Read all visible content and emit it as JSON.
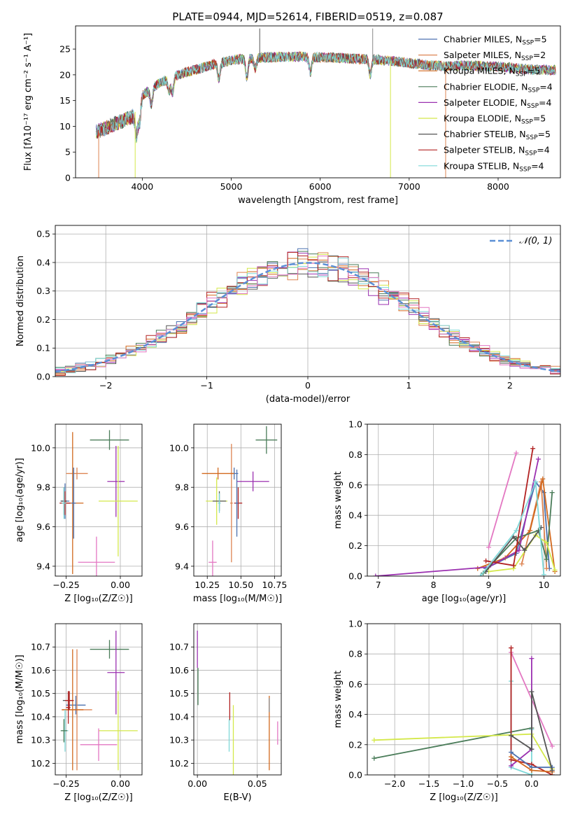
{
  "title": "PLATE=0944, MJD=52614, FIBERID=0519, z=0.087",
  "colors": {
    "Chabrier MILES": "#4c72b0",
    "Salpeter MILES": "#dd8452",
    "Kroupa MILES": "#d2691e",
    "Chabrier ELODIE": "#4a7c59",
    "Salpeter ELODIE": "#9b30b0",
    "Kroupa ELODIE": "#d4e84a",
    "Chabrier STELIB": "#555555",
    "Salpeter STELIB": "#b22222",
    "Kroupa STELIB": "#7fd8d8",
    "normal": "#5b8fd6",
    "pink": "#e377c2"
  },
  "chart_data": [
    {
      "id": "spectrum",
      "type": "line",
      "xlabel": "wavelength [Angstrom, rest frame]",
      "ylabel": "Flux [fλ10⁻¹⁷ erg cm⁻² s⁻¹ A⁻¹]",
      "xlim": [
        3250,
        8700
      ],
      "ylim": [
        0,
        29.5
      ],
      "xticks": [
        4000,
        5000,
        6000,
        7000,
        8000
      ],
      "yticks": [
        0,
        5,
        10,
        15,
        20,
        25
      ],
      "grid": false,
      "legend_position": "top-right",
      "legend": [
        {
          "label": "Chabrier MILES, N",
          "sub": "SSP",
          "tail": "=5",
          "color": "#4c72b0"
        },
        {
          "label": "Salpeter MILES, N",
          "sub": "SSP",
          "tail": "=2",
          "color": "#dd8452"
        },
        {
          "label": "Kroupa MILES, N",
          "sub": "SSP",
          "tail": "=5",
          "color": "#d2691e"
        },
        {
          "label": "Chabrier ELODIE, N",
          "sub": "SSP",
          "tail": "=4",
          "color": "#4a7c59"
        },
        {
          "label": "Salpeter ELODIE, N",
          "sub": "SSP",
          "tail": "=4",
          "color": "#9b30b0"
        },
        {
          "label": "Kroupa ELODIE, N",
          "sub": "SSP",
          "tail": "=5",
          "color": "#d4e84a"
        },
        {
          "label": "Chabrier STELIB, N",
          "sub": "SSP",
          "tail": "=5",
          "color": "#555555"
        },
        {
          "label": "Salpeter STELIB, N",
          "sub": "SSP",
          "tail": "=4",
          "color": "#b22222"
        },
        {
          "label": "Kroupa STELIB, N",
          "sub": "SSP",
          "tail": "=4",
          "color": "#7fd8d8"
        }
      ],
      "continuum": {
        "x": [
          3500,
          3700,
          3900,
          4000,
          4200,
          4400,
          4600,
          4800,
          5000,
          5200,
          5400,
          5600,
          5800,
          6000,
          6200,
          6400,
          6600,
          6800,
          7000,
          7200,
          7400,
          7600,
          7800,
          8000,
          8200,
          8400,
          8650
        ],
        "y": [
          9.0,
          10.5,
          12.0,
          16.0,
          18.5,
          20.0,
          21.0,
          22.0,
          22.8,
          23.2,
          23.4,
          23.5,
          23.5,
          23.4,
          23.3,
          23.1,
          23.0,
          22.7,
          22.3,
          21.9,
          21.7,
          21.8,
          21.7,
          21.6,
          21.3,
          21.0,
          20.9
        ]
      },
      "features": [
        {
          "x": 3934,
          "depth": 5.0
        },
        {
          "x": 3969,
          "depth": 4.0
        },
        {
          "x": 4102,
          "depth": 3.0
        },
        {
          "x": 4300,
          "depth": 2.5
        },
        {
          "x": 4340,
          "depth": 3.0
        },
        {
          "x": 4861,
          "depth": 3.0
        },
        {
          "x": 5175,
          "depth": 3.5
        },
        {
          "x": 5270,
          "depth": 2.0
        },
        {
          "x": 5890,
          "depth": 3.0
        },
        {
          "x": 6563,
          "depth": 3.0
        }
      ],
      "spikes": [
        {
          "x": 3510,
          "y": 0,
          "color": "#dd8452"
        },
        {
          "x": 3920,
          "y": 0,
          "color": "#d4e84a"
        },
        {
          "x": 6790,
          "y": 0,
          "color": "#d4e84a"
        },
        {
          "x": 7410,
          "y": 0,
          "color": "#dd8452"
        },
        {
          "x": 6590,
          "y": 29.0,
          "color": "#888888"
        },
        {
          "x": 5320,
          "y": 29.0,
          "color": "#555555"
        }
      ]
    },
    {
      "id": "residuals",
      "type": "step",
      "xlabel": "(data-model)/error",
      "ylabel": "Normed distribution",
      "xlim": [
        -2.5,
        2.5
      ],
      "ylim": [
        0,
        0.53
      ],
      "xticks": [
        -2,
        -1,
        0,
        1,
        2
      ],
      "xticklabels": [
        "−2",
        "−1",
        "0",
        "1",
        "2"
      ],
      "yticks": [
        0,
        0.1,
        0.2,
        0.3,
        0.4,
        0.5
      ],
      "yticklabels": [
        "0.0",
        "0.1",
        "0.2",
        "0.3",
        "0.4",
        "0.5"
      ],
      "grid": true,
      "legend_position": "top-right",
      "legend": [
        {
          "label": "𝒩(0, 1)",
          "color": "#5b8fd6",
          "dashed": true
        }
      ],
      "bin_width": 0.1,
      "series_colors": [
        "#4c72b0",
        "#dd8452",
        "#d2691e",
        "#4a7c59",
        "#9b30b0",
        "#d4e84a",
        "#555555",
        "#b22222",
        "#7fd8d8",
        "#e377c2"
      ]
    },
    {
      "id": "age_vs_Z",
      "type": "errorbar",
      "xlabel": "Z [log₁₀(Z/Z☉)]",
      "ylabel": "age  [log₁₀(age/yr)]",
      "xlim": [
        -0.3,
        0.1
      ],
      "ylim": [
        9.35,
        10.12
      ],
      "xticks": [
        -0.25,
        0.0
      ],
      "xticklabels": [
        "−0.25",
        "0.00"
      ],
      "yticks": [
        9.4,
        9.6,
        9.8,
        10.0
      ],
      "yticklabels": [
        "9.4",
        "9.6",
        "9.8",
        "10.0"
      ],
      "grid": true,
      "points": [
        {
          "x": -0.255,
          "y": 9.73,
          "xerr": 0.02,
          "yerr": 0.09,
          "color": "#4c72b0"
        },
        {
          "x": -0.2,
          "y": 9.87,
          "xerr": 0.05,
          "yerr": 0.03,
          "color": "#dd8452"
        },
        {
          "x": -0.22,
          "y": 9.72,
          "xerr": 0.05,
          "yerr": 0.36,
          "color": "#d2691e"
        },
        {
          "x": -0.05,
          "y": 10.04,
          "xerr": 0.09,
          "yerr": 0.05,
          "color": "#4a7c59"
        },
        {
          "x": -0.02,
          "y": 9.83,
          "xerr": 0.04,
          "yerr": 0.18,
          "color": "#9b30b0"
        },
        {
          "x": -0.01,
          "y": 9.73,
          "xerr": 0.09,
          "yerr": 0.28,
          "color": "#d4e84a"
        },
        {
          "x": -0.26,
          "y": 9.73,
          "xerr": 0.015,
          "yerr": 0.07,
          "color": "#555555"
        },
        {
          "x": -0.255,
          "y": 9.72,
          "xerr": 0.025,
          "yerr": 0.06,
          "color": "#b22222"
        },
        {
          "x": -0.26,
          "y": 9.72,
          "xerr": 0.01,
          "yerr": 0.08,
          "color": "#7fd8d8"
        },
        {
          "x": -0.11,
          "y": 9.42,
          "xerr": 0.085,
          "yerr": 0.13,
          "color": "#e377c2"
        },
        {
          "x": -0.215,
          "y": 9.72,
          "xerr": 0.01,
          "yerr": 0.18,
          "color": "#4c72b0"
        }
      ]
    },
    {
      "id": "age_vs_mass",
      "type": "errorbar",
      "xlabel": "mass [log₁₀(M/M☉)]",
      "ylabel": "",
      "xlim": [
        10.15,
        10.8
      ],
      "ylim": [
        9.35,
        10.12
      ],
      "xticks": [
        10.25,
        10.5,
        10.75
      ],
      "xticklabels": [
        "10.25",
        "10.50",
        "10.75"
      ],
      "yticks": [
        9.4,
        9.6,
        9.8,
        10.0
      ],
      "yticklabels": [
        "9.4",
        "9.6",
        "9.8",
        "10.0"
      ],
      "grid": true,
      "points": [
        {
          "x": 10.45,
          "y": 9.87,
          "xerr": 0.03,
          "yerr": 0.03,
          "color": "#4c72b0"
        },
        {
          "x": 10.43,
          "y": 9.72,
          "xerr": 0.01,
          "yerr": 0.3,
          "color": "#dd8452"
        },
        {
          "x": 10.33,
          "y": 9.87,
          "xerr": 0.12,
          "yerr": 0.03,
          "color": "#d2691e"
        },
        {
          "x": 10.69,
          "y": 10.04,
          "xerr": 0.08,
          "yerr": 0.07,
          "color": "#4a7c59"
        },
        {
          "x": 10.59,
          "y": 9.83,
          "xerr": 0.12,
          "yerr": 0.05,
          "color": "#9b30b0"
        },
        {
          "x": 10.32,
          "y": 9.73,
          "xerr": 0.08,
          "yerr": 0.12,
          "color": "#d4e84a"
        },
        {
          "x": 10.34,
          "y": 9.73,
          "xerr": 0.05,
          "yerr": 0.05,
          "color": "#555555"
        },
        {
          "x": 10.48,
          "y": 9.72,
          "xerr": 0.03,
          "yerr": 0.08,
          "color": "#b22222"
        },
        {
          "x": 10.34,
          "y": 9.72,
          "xerr": 0.01,
          "yerr": 0.05,
          "color": "#7fd8d8"
        },
        {
          "x": 10.29,
          "y": 9.42,
          "xerr": 0.03,
          "yerr": 0.11,
          "color": "#e377c2"
        },
        {
          "x": 10.47,
          "y": 9.72,
          "xerr": 0.01,
          "yerr": 0.17,
          "color": "#4c72b0"
        }
      ]
    },
    {
      "id": "massweight_vs_age",
      "type": "line-errorbar",
      "xlabel": "age  [log₁₀(age/yr)]",
      "ylabel": "mass weight",
      "xlim": [
        6.8,
        10.3
      ],
      "ylim": [
        0,
        1.0
      ],
      "xticks": [
        7,
        8,
        9,
        10
      ],
      "yticks": [
        0,
        0.2,
        0.4,
        0.6,
        0.8,
        1.0
      ],
      "yticklabels": [
        "0.0",
        "0.2",
        "0.4",
        "0.6",
        "0.8",
        "1.0"
      ],
      "grid": true,
      "series": [
        {
          "color": "#4c72b0",
          "x": [
            8.95,
            9.5,
            9.85,
            10.0,
            10.1
          ],
          "y": [
            0.05,
            0.15,
            0.62,
            0.55,
            0.05
          ]
        },
        {
          "color": "#dd8452",
          "x": [
            9.6,
            9.95,
            10.05
          ],
          "y": [
            0.08,
            0.62,
            0.05
          ]
        },
        {
          "color": "#d2691e",
          "x": [
            8.8,
            9.3,
            9.75,
            9.98,
            10.2
          ],
          "y": [
            0.05,
            0.12,
            0.3,
            0.64,
            0.03
          ]
        },
        {
          "color": "#4a7c59",
          "x": [
            8.9,
            9.5,
            9.9,
            10.05,
            10.15
          ],
          "y": [
            0.02,
            0.25,
            0.3,
            0.11,
            0.55
          ]
        },
        {
          "color": "#9b30b0",
          "x": [
            6.95,
            9.0,
            9.55,
            9.9
          ],
          "y": [
            0.0,
            0.06,
            0.17,
            0.77
          ]
        },
        {
          "color": "#d4e84a",
          "x": [
            9.0,
            9.45,
            9.85,
            10.05,
            10.2
          ],
          "y": [
            0.03,
            0.05,
            0.27,
            0.22,
            0.04
          ]
        },
        {
          "color": "#555555",
          "x": [
            8.95,
            9.45,
            9.65,
            9.95
          ],
          "y": [
            0.03,
            0.26,
            0.17,
            0.32
          ]
        },
        {
          "color": "#b22222",
          "x": [
            8.95,
            9.45,
            9.8
          ],
          "y": [
            0.1,
            0.07,
            0.84
          ]
        },
        {
          "color": "#7fd8d8",
          "x": [
            8.85,
            9.5,
            9.85,
            10.0
          ],
          "y": [
            0.0,
            0.3,
            0.62,
            0.01
          ]
        },
        {
          "color": "#e377c2",
          "x": [
            9.0,
            9.5
          ],
          "y": [
            0.19,
            0.81
          ]
        }
      ]
    },
    {
      "id": "mass_vs_Z",
      "type": "errorbar",
      "xlabel": "Z [log₁₀(Z/Z☉)]",
      "ylabel": "mass [log₁₀(M/M☉)]",
      "xlim": [
        -0.3,
        0.1
      ],
      "ylim": [
        10.15,
        10.8
      ],
      "xticks": [
        -0.25,
        0.0
      ],
      "xticklabels": [
        "−0.25",
        "0.00"
      ],
      "yticks": [
        10.2,
        10.3,
        10.4,
        10.5,
        10.6,
        10.7
      ],
      "yticklabels": [
        "10.2",
        "10.3",
        "10.4",
        "10.5",
        "10.6",
        "10.7"
      ],
      "grid": true,
      "points": [
        {
          "x": -0.205,
          "y": 10.45,
          "xerr": 0.045,
          "yerr": 0.04,
          "color": "#4c72b0"
        },
        {
          "x": -0.2,
          "y": 10.43,
          "xerr": 0.07,
          "yerr": 0.26,
          "color": "#dd8452"
        },
        {
          "x": -0.22,
          "y": 10.43,
          "xerr": 0.05,
          "yerr": 0.26,
          "color": "#d2691e"
        },
        {
          "x": -0.05,
          "y": 10.69,
          "xerr": 0.09,
          "yerr": 0.04,
          "color": "#4a7c59"
        },
        {
          "x": -0.02,
          "y": 10.59,
          "xerr": 0.04,
          "yerr": 0.18,
          "color": "#9b30b0"
        },
        {
          "x": -0.01,
          "y": 10.34,
          "xerr": 0.09,
          "yerr": 0.17,
          "color": "#d4e84a"
        },
        {
          "x": -0.24,
          "y": 10.47,
          "xerr": 0.025,
          "yerr": 0.04,
          "color": "#555555"
        },
        {
          "x": -0.235,
          "y": 10.47,
          "xerr": 0.02,
          "yerr": 0.04,
          "color": "#b22222"
        },
        {
          "x": -0.255,
          "y": 10.34,
          "xerr": 0.015,
          "yerr": 0.09,
          "color": "#7fd8d8"
        },
        {
          "x": -0.1,
          "y": 10.28,
          "xerr": 0.085,
          "yerr": 0.07,
          "color": "#e377c2"
        },
        {
          "x": -0.26,
          "y": 10.34,
          "xerr": 0.015,
          "yerr": 0.05,
          "color": "#4a7c59"
        },
        {
          "x": -0.24,
          "y": 10.44,
          "xerr": 0.01,
          "yerr": 0.07,
          "color": "#b22222"
        }
      ]
    },
    {
      "id": "mass_vs_ebv",
      "type": "errorbar",
      "xlabel": "E(B-V)",
      "ylabel": "",
      "xlim": [
        -0.003,
        0.07
      ],
      "ylim": [
        10.15,
        10.8
      ],
      "xticks": [
        0.0,
        0.05
      ],
      "xticklabels": [
        "0.00",
        "0.05"
      ],
      "yticks": [
        10.2,
        10.3,
        10.4,
        10.5,
        10.6,
        10.7
      ],
      "yticklabels": [
        "10.2",
        "10.3",
        "10.4",
        "10.5",
        "10.6",
        "10.7"
      ],
      "grid": true,
      "points": [
        {
          "x": 0.0,
          "y": 10.69,
          "xerr": 0,
          "yerr": 0.08,
          "color": "#9b30b0"
        },
        {
          "x": 0.0005,
          "y": 10.53,
          "xerr": 0,
          "yerr": 0.08,
          "color": "#4a7c59"
        },
        {
          "x": 0.027,
          "y": 10.445,
          "xerr": 0,
          "yerr": 0.06,
          "color": "#b22222"
        },
        {
          "x": 0.0265,
          "y": 10.32,
          "xerr": 0,
          "yerr": 0.07,
          "color": "#7fd8d8"
        },
        {
          "x": 0.03,
          "y": 10.3,
          "xerr": 0,
          "yerr": 0.15,
          "color": "#d4e84a"
        },
        {
          "x": 0.06,
          "y": 10.33,
          "xerr": 0,
          "yerr": 0.16,
          "color": "#d2691e"
        },
        {
          "x": 0.06,
          "y": 10.45,
          "xerr": 0,
          "yerr": 0.03,
          "color": "#888888"
        },
        {
          "x": 0.067,
          "y": 10.33,
          "xerr": 0,
          "yerr": 0.05,
          "color": "#e377c2"
        }
      ]
    },
    {
      "id": "massweight_vs_Z",
      "type": "line-errorbar",
      "xlabel": "Z [log₁₀(Z/Z☉)]",
      "ylabel": "mass weight",
      "xlim": [
        -2.4,
        0.42
      ],
      "ylim": [
        0,
        1.0
      ],
      "xticks": [
        -2.0,
        -1.5,
        -1.0,
        -0.5,
        0.0
      ],
      "xticklabels": [
        "−2.0",
        "−1.5",
        "−1.0",
        "−0.5",
        "0.0"
      ],
      "yticks": [
        0,
        0.2,
        0.4,
        0.6,
        0.8,
        1.0
      ],
      "yticklabels": [
        "0.0",
        "0.2",
        "0.4",
        "0.6",
        "0.8",
        "1.0"
      ],
      "grid": true,
      "series": [
        {
          "color": "#4a7c59",
          "x": [
            -2.3,
            0.0
          ],
          "y": [
            0.11,
            0.31
          ]
        },
        {
          "color": "#d4e84a",
          "x": [
            -2.3,
            0.0,
            0.3
          ],
          "y": [
            0.23,
            0.27,
            0.04
          ]
        },
        {
          "color": "#e377c2",
          "x": [
            -0.3,
            0.3
          ],
          "y": [
            0.81,
            0.19
          ]
        },
        {
          "color": "#7fd8d8",
          "x": [
            -0.3,
            -0.3,
            0.0,
            0.0
          ],
          "y": [
            0.62,
            0.05,
            0.0,
            0.3
          ]
        },
        {
          "color": "#9b30b0",
          "x": [
            -0.3,
            0.0,
            0.0
          ],
          "y": [
            0.06,
            0.17,
            0.77
          ]
        },
        {
          "color": "#b22222",
          "x": [
            -0.3,
            -0.3,
            0.0,
            0.3
          ],
          "y": [
            0.84,
            0.1,
            0.07,
            0.0
          ]
        },
        {
          "color": "#4c72b0",
          "x": [
            -0.3,
            0.0,
            0.3
          ],
          "y": [
            0.15,
            0.05,
            0.05
          ]
        },
        {
          "color": "#d2691e",
          "x": [
            -0.3,
            0.0,
            0.3
          ],
          "y": [
            0.12,
            0.03,
            0.02
          ]
        },
        {
          "color": "#555555",
          "x": [
            -0.3,
            0.0,
            0.0,
            0.3
          ],
          "y": [
            0.26,
            0.17,
            0.55,
            0.03
          ]
        }
      ]
    }
  ]
}
